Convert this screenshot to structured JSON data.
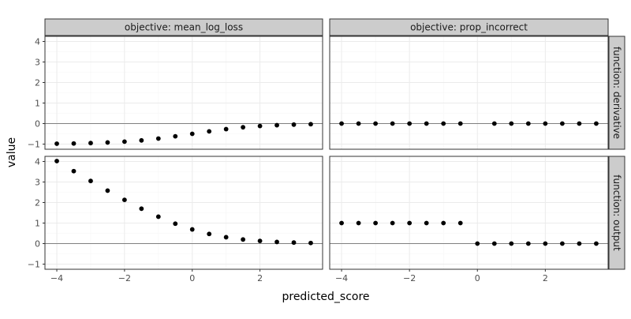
{
  "chart_data": {
    "type": "scatter",
    "facet_layout": "grid",
    "xlabel": "predicted_score",
    "ylabel": "value",
    "xlim": [
      -4.35,
      3.85
    ],
    "ylim": [
      -1.25,
      4.25
    ],
    "x_ticks": [
      -4,
      -2,
      0,
      2
    ],
    "y_ticks": [
      -1,
      0,
      1,
      2,
      3,
      4
    ],
    "grid": true,
    "reference_line_y": 0,
    "column_strips": [
      "objective: mean_log_loss",
      "objective: prop_incorrect"
    ],
    "row_strips": [
      "function: derivative",
      "function: output"
    ],
    "panels": [
      {
        "row": 0,
        "col": 0,
        "x": [
          -4,
          -3.5,
          -3,
          -2.5,
          -2,
          -1.5,
          -1,
          -0.5,
          0,
          0.5,
          1,
          1.5,
          2,
          2.5,
          3,
          3.5
        ],
        "y": [
          -0.98,
          -0.97,
          -0.95,
          -0.92,
          -0.88,
          -0.82,
          -0.73,
          -0.62,
          -0.5,
          -0.38,
          -0.27,
          -0.18,
          -0.12,
          -0.08,
          -0.05,
          -0.03
        ]
      },
      {
        "row": 0,
        "col": 1,
        "x": [
          -4,
          -3.5,
          -3,
          -2.5,
          -2,
          -1.5,
          -1,
          -0.5,
          0.5,
          1,
          1.5,
          2,
          2.5,
          3,
          3.5
        ],
        "y": [
          0,
          0,
          0,
          0,
          0,
          0,
          0,
          0,
          0,
          0,
          0,
          0,
          0,
          0,
          0
        ]
      },
      {
        "row": 1,
        "col": 0,
        "x": [
          -4,
          -3.5,
          -3,
          -2.5,
          -2,
          -1.5,
          -1,
          -0.5,
          0,
          0.5,
          1,
          1.5,
          2,
          2.5,
          3,
          3.5
        ],
        "y": [
          4.02,
          3.53,
          3.05,
          2.58,
          2.13,
          1.7,
          1.31,
          0.97,
          0.69,
          0.47,
          0.31,
          0.2,
          0.13,
          0.08,
          0.05,
          0.03
        ]
      },
      {
        "row": 1,
        "col": 1,
        "x": [
          -4,
          -3.5,
          -3,
          -2.5,
          -2,
          -1.5,
          -1,
          -0.5,
          0,
          0.5,
          1,
          1.5,
          2,
          2.5,
          3,
          3.5
        ],
        "y": [
          1,
          1,
          1,
          1,
          1,
          1,
          1,
          1,
          0,
          0,
          0,
          0,
          0,
          0,
          0,
          0
        ]
      }
    ],
    "colors": {
      "point": "#000000",
      "strip_fill": "#cccccc",
      "strip_border": "#333333",
      "panel_border": "#333333",
      "grid_major": "#ebebeb",
      "grid_minor": "#f5f5f5",
      "zero_line": "#808080",
      "tick_text": "#4d4d4d"
    }
  }
}
